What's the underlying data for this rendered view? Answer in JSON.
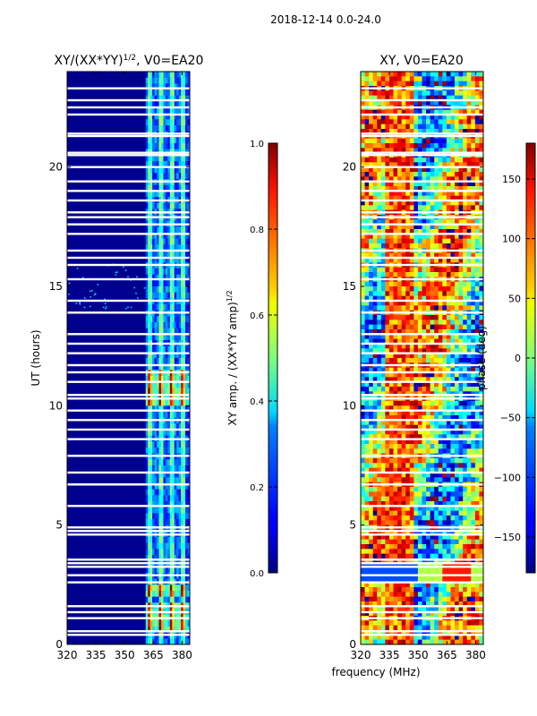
{
  "figure": {
    "suptitle": "2018-12-14 0.0-24.0",
    "shared_xlabel": "frequency (MHz)"
  },
  "chart_data": [
    {
      "type": "heatmap",
      "title": "XY/(XX*YY)",
      "title_sup": "1/2",
      "title_tail": ", V0=EA20",
      "ylabel": "UT (hours)",
      "xlim": [
        320,
        384
      ],
      "ylim": [
        0,
        24
      ],
      "xticks": [
        320,
        335,
        350,
        365,
        380
      ],
      "yticks": [
        0,
        5,
        10,
        15,
        20
      ],
      "dead_band_mhz": [
        320,
        361
      ],
      "active_band_mhz": [
        361,
        384
      ],
      "colorbar": {
        "label": "XY amp. / (XX*YY amp)",
        "label_sup": "1/2",
        "ticks": [
          0.0,
          0.2,
          0.4,
          0.6,
          0.8,
          1.0
        ],
        "tick_labels": [
          "0.0",
          "0.2",
          "0.4",
          "0.6",
          "0.8",
          "1.0"
        ],
        "range": [
          0.0,
          1.0
        ],
        "colormap": "jet"
      }
    },
    {
      "type": "heatmap",
      "title": "XY, V0=EA20",
      "xlim": [
        320,
        384
      ],
      "ylim": [
        0,
        24
      ],
      "xticks": [
        320,
        335,
        350,
        365,
        380
      ],
      "yticks": [
        0,
        5,
        10,
        15,
        20
      ],
      "colorbar": {
        "label": "phase (deg)",
        "ticks": [
          -150,
          -100,
          -50,
          0,
          50,
          100,
          150
        ],
        "tick_labels": [
          "−150",
          "−100",
          "−50",
          "0",
          "50",
          "100",
          "150"
        ],
        "range": [
          -180,
          180
        ],
        "colormap": "jet"
      }
    }
  ],
  "flagged_ut_hours": [
    0.4,
    0.55,
    1.1,
    1.35,
    1.6,
    2.6,
    2.9,
    3.25,
    3.4,
    3.55,
    4.6,
    4.75,
    4.9,
    5.8,
    6.7,
    7.2,
    7.9,
    8.6,
    9.0,
    9.4,
    9.8,
    10.3,
    10.45,
    11.0,
    11.4,
    11.7,
    12.2,
    12.6,
    13.0,
    13.9,
    14.4,
    15.3,
    15.9,
    16.2,
    16.5,
    17.2,
    17.6,
    17.9,
    18.1,
    18.6,
    19.0,
    19.4,
    20.0,
    20.5,
    20.6,
    21.3,
    21.4,
    22.2,
    22.5,
    22.8,
    23.3
  ]
}
